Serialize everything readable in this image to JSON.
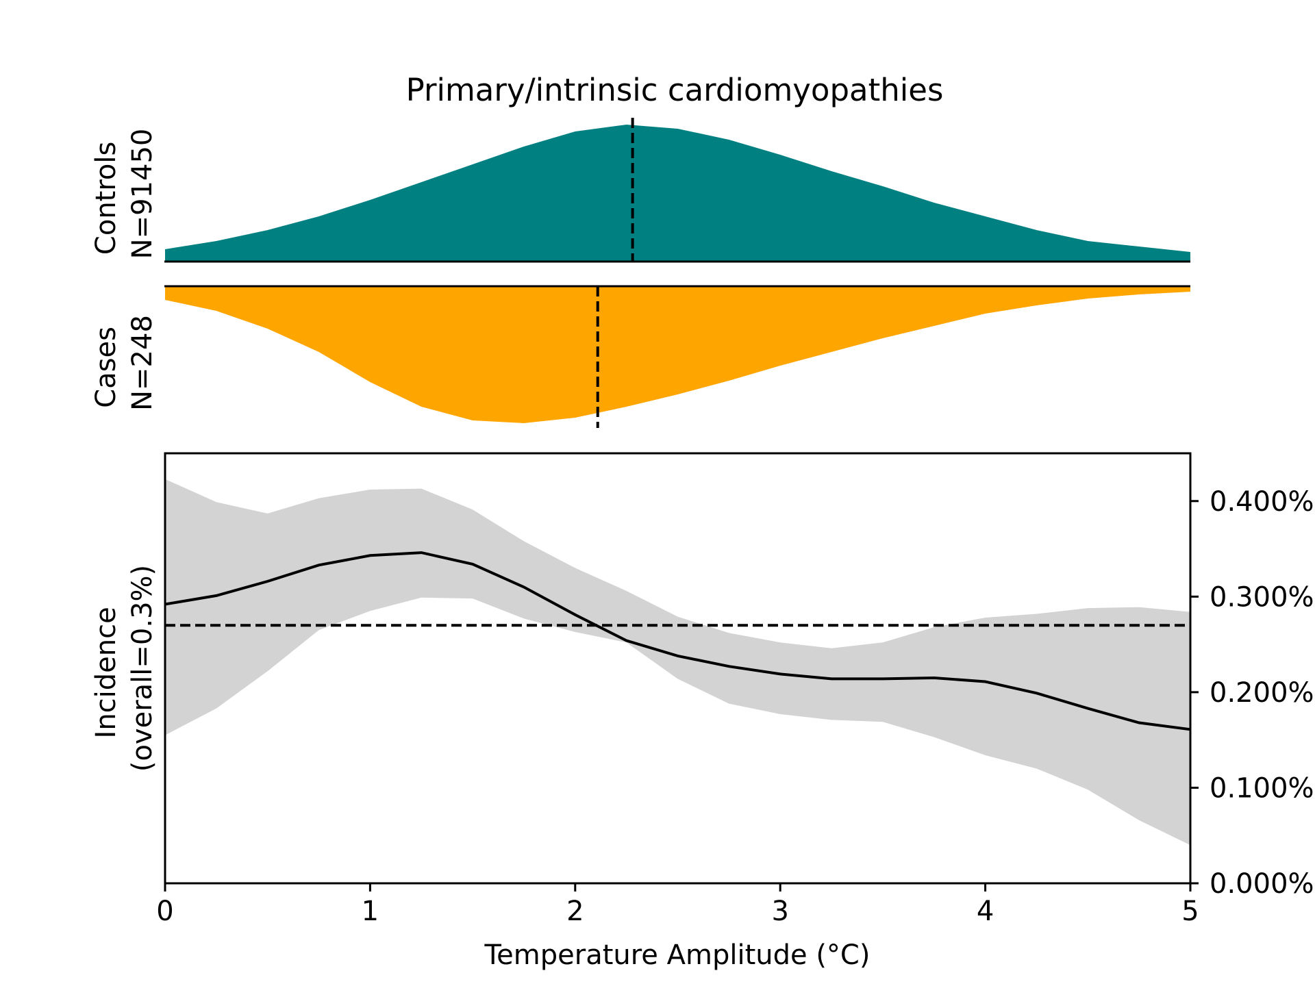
{
  "chart_data": {
    "type": "area",
    "title": "Primary/intrinsic cardiomyopathies",
    "xlabel": "Temperature Amplitude (°C)",
    "xlim": [
      0,
      5
    ],
    "x_ticks": [
      0,
      1,
      2,
      3,
      4,
      5
    ],
    "x_tick_labels": [
      "0",
      "1",
      "2",
      "3",
      "4",
      "5"
    ],
    "colors": {
      "controls": "#008080",
      "cases": "#ffa500",
      "band": "#d3d3d3",
      "line": "#000000"
    },
    "distributions": [
      {
        "name": "Controls",
        "label_lines": [
          "Controls",
          "N=91450"
        ],
        "n": 91450,
        "color": "#008080",
        "direction": "up",
        "median": 2.28,
        "x": [
          0,
          0.25,
          0.5,
          0.75,
          1,
          1.25,
          1.5,
          1.75,
          2,
          2.25,
          2.5,
          2.75,
          3,
          3.25,
          3.5,
          3.75,
          4,
          4.25,
          4.5,
          4.75,
          5
        ],
        "density": [
          0.09,
          0.15,
          0.23,
          0.33,
          0.45,
          0.58,
          0.71,
          0.84,
          0.95,
          1.0,
          0.97,
          0.89,
          0.78,
          0.66,
          0.55,
          0.43,
          0.33,
          0.23,
          0.15,
          0.11,
          0.07
        ]
      },
      {
        "name": "Cases",
        "label_lines": [
          "Cases",
          "N=248"
        ],
        "n": 248,
        "color": "#ffa500",
        "direction": "down",
        "median": 2.11,
        "x": [
          0,
          0.25,
          0.5,
          0.75,
          1,
          1.25,
          1.5,
          1.75,
          2,
          2.25,
          2.5,
          2.75,
          3,
          3.25,
          3.5,
          3.75,
          4,
          4.25,
          4.5,
          4.75,
          5
        ],
        "density": [
          0.1,
          0.18,
          0.31,
          0.48,
          0.7,
          0.88,
          0.98,
          1.0,
          0.96,
          0.88,
          0.79,
          0.69,
          0.58,
          0.48,
          0.38,
          0.29,
          0.2,
          0.14,
          0.09,
          0.06,
          0.04
        ]
      }
    ],
    "incidence": {
      "ylabel_lines": [
        "Incidence",
        "(overall=0.3%)"
      ],
      "ylim": [
        0,
        0.0045
      ],
      "y_ticks": [
        0,
        0.001,
        0.002,
        0.003,
        0.004
      ],
      "y_tick_labels": [
        "0.000%",
        "0.100%",
        "0.200%",
        "0.300%",
        "0.400%"
      ],
      "y_axis_side": "right",
      "overall": 0.0027,
      "x": [
        0,
        0.25,
        0.5,
        0.75,
        1,
        1.25,
        1.5,
        1.75,
        2,
        2.25,
        2.5,
        2.75,
        3,
        3.25,
        3.5,
        3.75,
        4,
        4.25,
        4.5,
        4.75,
        5
      ],
      "estimate": [
        0.00292,
        0.00301,
        0.00316,
        0.00333,
        0.00343,
        0.00346,
        0.00334,
        0.0031,
        0.00281,
        0.00254,
        0.00238,
        0.00227,
        0.00219,
        0.00214,
        0.00214,
        0.00215,
        0.00211,
        0.00199,
        0.00183,
        0.00168,
        0.00161
      ],
      "lower": [
        0.00155,
        0.00183,
        0.00222,
        0.00265,
        0.00285,
        0.00299,
        0.00298,
        0.00277,
        0.00263,
        0.00252,
        0.00214,
        0.00188,
        0.00177,
        0.00171,
        0.00169,
        0.00153,
        0.00134,
        0.0012,
        0.00098,
        0.00066,
        0.0004
      ],
      "upper": [
        0.00423,
        0.00399,
        0.00387,
        0.00403,
        0.00412,
        0.00413,
        0.00391,
        0.00358,
        0.0033,
        0.00306,
        0.00279,
        0.00262,
        0.00252,
        0.00246,
        0.00252,
        0.00268,
        0.00278,
        0.00282,
        0.00288,
        0.00289,
        0.00284
      ]
    }
  }
}
